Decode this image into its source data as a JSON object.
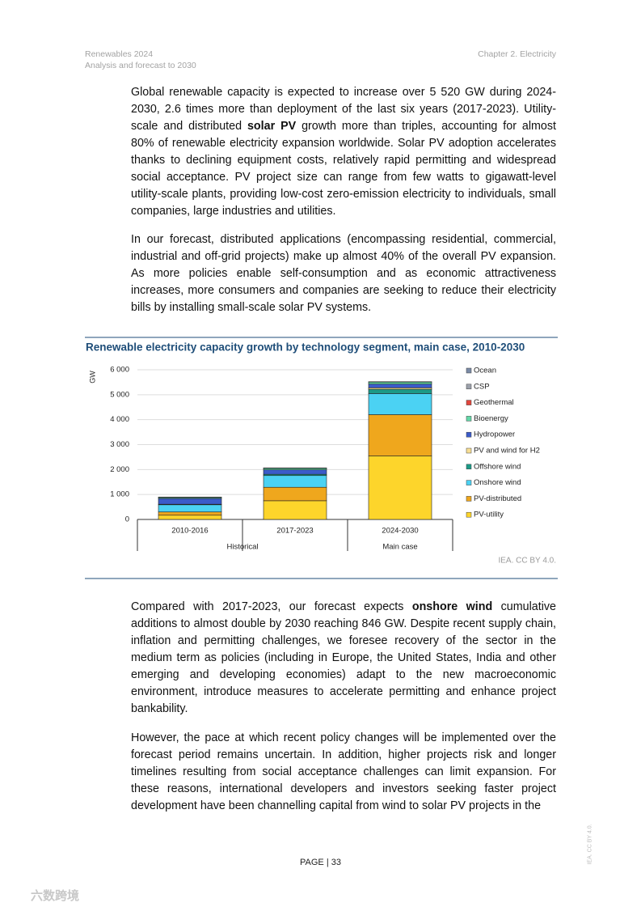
{
  "header": {
    "left": [
      "Renewables 2024",
      "Analysis and forecast to 2030"
    ],
    "right": "Chapter 2. Electricity"
  },
  "paragraphs_top": [
    [
      {
        "text": "Global renewable capacity is expected to increase over 5 520 GW during 2024-2030, 2.6 times more than deployment of the last six years (2017-2023). Utility-scale and distributed "
      },
      {
        "text": "solar PV",
        "bold": true
      },
      {
        "text": " growth more than triples, accounting for almost 80% of renewable electricity expansion worldwide. Solar PV adoption accelerates thanks to declining equipment costs, relatively rapid permitting and widespread social acceptance. PV project size can range from few watts to gigawatt-level utility-scale plants, providing low-cost zero-emission electricity to individuals, small companies, large industries and utilities."
      }
    ],
    [
      {
        "text": "In our forecast, distributed applications (encompassing residential, commercial, industrial and off-grid projects) make up almost 40% of the overall PV expansion. As more policies enable self-consumption and as economic attractiveness increases, more consumers and companies are seeking to reduce their electricity bills by installing small-scale solar PV systems."
      }
    ]
  ],
  "chart_data": {
    "type": "stacked_bar",
    "title": "Renewable electricity capacity growth by technology segment, main case, 2010-2030",
    "y_label": "GW",
    "categories": [
      "2010-2016",
      "2017-2023",
      "2024-2030"
    ],
    "groups": [
      {
        "name": "Historical",
        "span": 2
      },
      {
        "name": "Main case",
        "span": 1
      }
    ],
    "ylim": [
      0,
      6000
    ],
    "yticks": [
      0,
      {
        "value": 1000,
        "label": "1 000"
      },
      {
        "value": 2000,
        "label": "2 000"
      },
      {
        "value": 3000,
        "label": "3 000"
      },
      {
        "value": 4000,
        "label": "4 000"
      },
      {
        "value": 5000,
        "label": "5 000"
      },
      {
        "value": 6000,
        "label": "6 000"
      }
    ],
    "grid": true,
    "legend": "right",
    "series": [
      {
        "name": "PV-utility",
        "color": "#fdd52b",
        "values": [
          170,
          750,
          2550
        ]
      },
      {
        "name": "PV-distributed",
        "color": "#efa71d",
        "values": [
          130,
          540,
          1650
        ]
      },
      {
        "name": "Onshore wind",
        "color": "#4bd2f3",
        "values": [
          290,
          470,
          846
        ]
      },
      {
        "name": "Offshore wind",
        "color": "#1c9a87",
        "values": [
          20,
          50,
          170
        ]
      },
      {
        "name": "PV and wind for H2",
        "color": "#f8de93",
        "values": [
          0,
          0,
          60
        ]
      },
      {
        "name": "Hydropower",
        "color": "#3b5bc9",
        "values": [
          230,
          180,
          150
        ]
      },
      {
        "name": "Bioenergy",
        "color": "#63d8a8",
        "values": [
          40,
          60,
          80
        ]
      },
      {
        "name": "Geothermal",
        "color": "#e2463c",
        "values": [
          10,
          10,
          10
        ]
      },
      {
        "name": "CSP",
        "color": "#9ca1ab",
        "values": [
          5,
          5,
          5
        ]
      },
      {
        "name": "Ocean",
        "color": "#7b8ba6",
        "values": [
          0,
          0,
          0
        ]
      }
    ],
    "source": "IEA. CC BY 4.0."
  },
  "paragraphs_bottom": [
    [
      {
        "text": "Compared with 2017-2023, our forecast expects "
      },
      {
        "text": "onshore wind",
        "bold": true
      },
      {
        "text": " cumulative additions to almost double by 2030 reaching 846 GW. Despite recent supply chain, inflation and permitting challenges, we foresee recovery of the sector in the medium term as policies (including in Europe, the United States, India and other emerging and developing economies) adapt to the new macroeconomic environment, introduce measures to accelerate permitting and enhance project bankability."
      }
    ],
    [
      {
        "text": "However, the pace at which recent policy changes will be implemented over the forecast period remains uncertain. In addition, higher projects risk and longer timelines resulting from social acceptance challenges can limit expansion. For these reasons, international developers and investors seeking faster project development have been channelling capital from wind to solar PV projects in the"
      }
    ]
  ],
  "footer": {
    "page": "PAGE | 33",
    "side": "IEA. CC BY 4.0.",
    "watermark": "六数跨境"
  }
}
